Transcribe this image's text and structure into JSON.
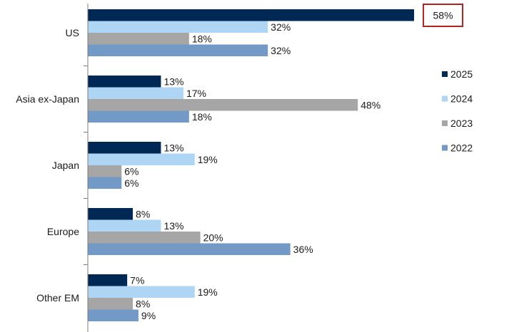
{
  "chart_data": {
    "type": "bar",
    "orientation": "horizontal",
    "title": "",
    "xlabel": "",
    "ylabel": "",
    "categories": [
      "US",
      "Asia ex-Japan",
      "Japan",
      "Europe",
      "Other EM"
    ],
    "series": [
      {
        "name": "2025",
        "color": "#002855",
        "values": [
          58,
          13,
          13,
          8,
          7
        ],
        "labels": [
          "58%",
          "13%",
          "13%",
          "8%",
          "7%"
        ]
      },
      {
        "name": "2024",
        "color": "#aed6f4",
        "values": [
          32,
          17,
          19,
          13,
          19
        ],
        "labels": [
          "32%",
          "17%",
          "19%",
          "13%",
          "19%"
        ]
      },
      {
        "name": "2023",
        "color": "#a6a6a6",
        "values": [
          18,
          48,
          6,
          20,
          8
        ],
        "labels": [
          "18%",
          "48%",
          "6%",
          "20%",
          "8%"
        ]
      },
      {
        "name": "2022",
        "color": "#7399c6",
        "values": [
          32,
          18,
          6,
          36,
          9
        ],
        "labels": [
          "32%",
          "18%",
          "6%",
          "36%",
          "9%"
        ]
      }
    ],
    "xlim": [
      0,
      60
    ],
    "grid": false,
    "legend_position": "right",
    "highlight": {
      "series": "2025",
      "category": "US",
      "border_color": "#b22222"
    }
  }
}
